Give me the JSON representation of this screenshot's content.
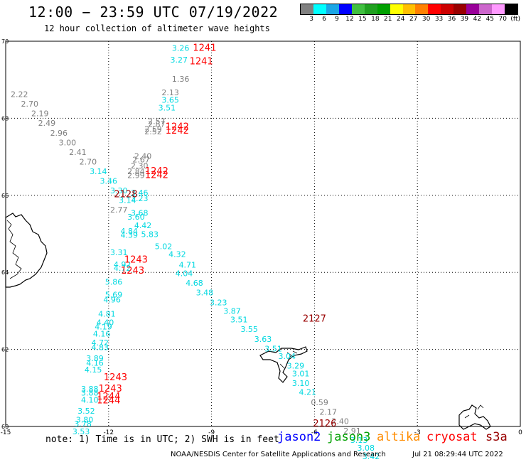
{
  "header": {
    "title": "12:00 − 23:59 UTC 07/19/2022",
    "subtitle": "12 hour collection of altimeter wave heights"
  },
  "legend": {
    "colors": [
      "#808080",
      "#00ffff",
      "#1aa6e6",
      "#0000ff",
      "#40c040",
      "#20a020",
      "#00a000",
      "#ffff00",
      "#ffc000",
      "#ff8000",
      "#ff0000",
      "#cc0000",
      "#990000",
      "#990099",
      "#cc66cc",
      "#ff99ff",
      "#000000"
    ],
    "labels": [
      "3",
      "6",
      "9",
      "12",
      "15",
      "18",
      "21",
      "24",
      "27",
      "30",
      "33",
      "36",
      "39",
      "42",
      "45",
      "70",
      "(ft)"
    ]
  },
  "axes": {
    "x_ticks": [
      "-15",
      "-12",
      "-9",
      "-6",
      "-3",
      "0"
    ],
    "y_ticks": [
      "70",
      "68",
      "66",
      "64",
      "62",
      "60"
    ]
  },
  "time_labels": [
    {
      "text": "1241",
      "lon": -9.2,
      "lat": 69.75,
      "color": "#ff0000"
    },
    {
      "text": "1241",
      "lon": -9.3,
      "lat": 69.4,
      "color": "#ff0000"
    },
    {
      "text": "1242",
      "lon": -10.0,
      "lat": 67.7,
      "color": "#ff0000"
    },
    {
      "text": "1242",
      "lon": -10.0,
      "lat": 67.6,
      "color": "#ff0000"
    },
    {
      "text": "1242",
      "lon": -10.6,
      "lat": 66.55,
      "color": "#ff0000"
    },
    {
      "text": "1242",
      "lon": -10.6,
      "lat": 66.45,
      "color": "#ff0000"
    },
    {
      "text": "2128",
      "lon": -11.5,
      "lat": 65.95,
      "color": "#990000"
    },
    {
      "text": "1243",
      "lon": -11.2,
      "lat": 64.25,
      "color": "#ff0000"
    },
    {
      "text": "1243",
      "lon": -11.3,
      "lat": 63.97,
      "color": "#ff0000"
    },
    {
      "text": "2127",
      "lon": -6.0,
      "lat": 62.72,
      "color": "#990000"
    },
    {
      "text": "1243",
      "lon": -11.8,
      "lat": 61.2,
      "color": "#ff0000"
    },
    {
      "text": "1243",
      "lon": -11.95,
      "lat": 60.9,
      "color": "#ff0000"
    },
    {
      "text": "1244",
      "lon": -12.0,
      "lat": 60.7,
      "color": "#ff0000"
    },
    {
      "text": "1244",
      "lon": -12.0,
      "lat": 60.6,
      "color": "#ff0000"
    },
    {
      "text": "2126",
      "lon": -5.7,
      "lat": 60.0,
      "color": "#990000"
    }
  ],
  "wave_heights": [
    {
      "text": "3.26",
      "lon": -9.9,
      "lat": 69.75,
      "color": "#00d8e0"
    },
    {
      "text": "3.27",
      "lon": -9.95,
      "lat": 69.45,
      "color": "#00d8e0"
    },
    {
      "text": "1.36",
      "lon": -9.9,
      "lat": 68.95,
      "color": "#808080"
    },
    {
      "text": "2.13",
      "lon": -10.2,
      "lat": 68.6,
      "color": "#808080"
    },
    {
      "text": "3.65",
      "lon": -10.2,
      "lat": 68.4,
      "color": "#00d8e0"
    },
    {
      "text": "3.51",
      "lon": -10.3,
      "lat": 68.2,
      "color": "#00d8e0"
    },
    {
      "text": "2.57",
      "lon": -10.6,
      "lat": 67.85,
      "color": "#808080"
    },
    {
      "text": "2.87",
      "lon": -10.6,
      "lat": 67.78,
      "color": "#808080"
    },
    {
      "text": "2.59",
      "lon": -10.7,
      "lat": 67.65,
      "color": "#808080"
    },
    {
      "text": "2.52",
      "lon": -10.7,
      "lat": 67.58,
      "color": "#808080"
    },
    {
      "text": "2.22",
      "lon": -14.6,
      "lat": 68.55,
      "color": "#808080"
    },
    {
      "text": "2.70",
      "lon": -14.3,
      "lat": 68.3,
      "color": "#808080"
    },
    {
      "text": "2.19",
      "lon": -14.0,
      "lat": 68.05,
      "color": "#808080"
    },
    {
      "text": "2.49",
      "lon": -13.8,
      "lat": 67.8,
      "color": "#808080"
    },
    {
      "text": "2.96",
      "lon": -13.45,
      "lat": 67.55,
      "color": "#808080"
    },
    {
      "text": "3.00",
      "lon": -13.2,
      "lat": 67.3,
      "color": "#808080"
    },
    {
      "text": "2.41",
      "lon": -12.9,
      "lat": 67.05,
      "color": "#808080"
    },
    {
      "text": "2.70",
      "lon": -12.6,
      "lat": 66.8,
      "color": "#808080"
    },
    {
      "text": "2.40",
      "lon": -11.0,
      "lat": 66.95,
      "color": "#808080"
    },
    {
      "text": "2.67",
      "lon": -11.05,
      "lat": 66.85,
      "color": "#808080"
    },
    {
      "text": "2.30",
      "lon": -11.1,
      "lat": 66.7,
      "color": "#808080"
    },
    {
      "text": "2.84",
      "lon": -11.2,
      "lat": 66.55,
      "color": "#808080"
    },
    {
      "text": "2.99",
      "lon": -11.2,
      "lat": 66.45,
      "color": "#808080"
    },
    {
      "text": "3.14",
      "lon": -12.3,
      "lat": 66.55,
      "color": "#00d8e0"
    },
    {
      "text": "3.46",
      "lon": -12.0,
      "lat": 66.3,
      "color": "#00d8e0"
    },
    {
      "text": "3.30",
      "lon": -11.7,
      "lat": 66.05,
      "color": "#00d8e0"
    },
    {
      "text": "3.14",
      "lon": -11.45,
      "lat": 65.8,
      "color": "#00d8e0"
    },
    {
      "text": "3.46",
      "lon": -11.1,
      "lat": 66.0,
      "color": "#00d8e0"
    },
    {
      "text": "3.23",
      "lon": -11.1,
      "lat": 65.85,
      "color": "#00d8e0"
    },
    {
      "text": "2.77",
      "lon": -11.7,
      "lat": 65.55,
      "color": "#808080"
    },
    {
      "text": "3.68",
      "lon": -11.1,
      "lat": 65.47,
      "color": "#00d8e0"
    },
    {
      "text": "3.60",
      "lon": -11.2,
      "lat": 65.37,
      "color": "#00d8e0"
    },
    {
      "text": "4.42",
      "lon": -11.0,
      "lat": 65.15,
      "color": "#00d8e0"
    },
    {
      "text": "4.84",
      "lon": -11.4,
      "lat": 65.0,
      "color": "#00d8e0"
    },
    {
      "text": "4.39",
      "lon": -11.4,
      "lat": 64.9,
      "color": "#00d8e0"
    },
    {
      "text": "5.83",
      "lon": -10.8,
      "lat": 64.92,
      "color": "#00d8e0"
    },
    {
      "text": "5.02",
      "lon": -10.4,
      "lat": 64.6,
      "color": "#00d8e0"
    },
    {
      "text": "3.31",
      "lon": -11.7,
      "lat": 64.45,
      "color": "#00d8e0"
    },
    {
      "text": "4.32",
      "lon": -10.0,
      "lat": 64.4,
      "color": "#00d8e0"
    },
    {
      "text": "4.92",
      "lon": -11.6,
      "lat": 64.13,
      "color": "#00d8e0"
    },
    {
      "text": "4.72",
      "lon": -11.6,
      "lat": 64.04,
      "color": "#00d8e0"
    },
    {
      "text": "4.71",
      "lon": -9.7,
      "lat": 64.12,
      "color": "#00d8e0"
    },
    {
      "text": "4.04",
      "lon": -9.8,
      "lat": 63.9,
      "color": "#00d8e0"
    },
    {
      "text": "5.86",
      "lon": -11.85,
      "lat": 63.68,
      "color": "#00d8e0"
    },
    {
      "text": "4.68",
      "lon": -9.5,
      "lat": 63.65,
      "color": "#00d8e0"
    },
    {
      "text": "3.48",
      "lon": -9.2,
      "lat": 63.4,
      "color": "#00d8e0"
    },
    {
      "text": "5.69",
      "lon": -11.85,
      "lat": 63.35,
      "color": "#00d8e0"
    },
    {
      "text": "4.96",
      "lon": -11.9,
      "lat": 63.22,
      "color": "#00d8e0"
    },
    {
      "text": "3.23",
      "lon": -8.8,
      "lat": 63.15,
      "color": "#00d8e0"
    },
    {
      "text": "3.87",
      "lon": -8.4,
      "lat": 62.92,
      "color": "#00d8e0"
    },
    {
      "text": "4.81",
      "lon": -12.05,
      "lat": 62.85,
      "color": "#00d8e0"
    },
    {
      "text": "3.51",
      "lon": -8.2,
      "lat": 62.7,
      "color": "#00d8e0"
    },
    {
      "text": "4.40",
      "lon": -12.1,
      "lat": 62.63,
      "color": "#00d8e0"
    },
    {
      "text": "4.19",
      "lon": -12.15,
      "lat": 62.52,
      "color": "#00d8e0"
    },
    {
      "text": "3.55",
      "lon": -7.9,
      "lat": 62.45,
      "color": "#00d8e0"
    },
    {
      "text": "4.16",
      "lon": -12.2,
      "lat": 62.33,
      "color": "#00d8e0"
    },
    {
      "text": "3.63",
      "lon": -7.5,
      "lat": 62.2,
      "color": "#00d8e0"
    },
    {
      "text": "4.72",
      "lon": -12.25,
      "lat": 62.1,
      "color": "#00d8e0"
    },
    {
      "text": "3.51",
      "lon": -7.2,
      "lat": 61.95,
      "color": "#00d8e0"
    },
    {
      "text": "4.83",
      "lon": -12.25,
      "lat": 61.98,
      "color": "#00d8e0"
    },
    {
      "text": "3.04",
      "lon": -6.8,
      "lat": 61.75,
      "color": "#00d8e0"
    },
    {
      "text": "3.89",
      "lon": -12.4,
      "lat": 61.7,
      "color": "#00d8e0"
    },
    {
      "text": "4.16",
      "lon": -12.4,
      "lat": 61.58,
      "color": "#00d8e0"
    },
    {
      "text": "3.29",
      "lon": -6.55,
      "lat": 61.5,
      "color": "#00d8e0"
    },
    {
      "text": "4.15",
      "lon": -12.45,
      "lat": 61.4,
      "color": "#00d8e0"
    },
    {
      "text": "3.01",
      "lon": -6.4,
      "lat": 61.3,
      "color": "#00d8e0"
    },
    {
      "text": "3.10",
      "lon": -6.4,
      "lat": 61.05,
      "color": "#00d8e0"
    },
    {
      "text": "4.21",
      "lon": -6.2,
      "lat": 60.82,
      "color": "#00d8e0"
    },
    {
      "text": "3.88",
      "lon": -12.55,
      "lat": 60.9,
      "color": "#00d8e0"
    },
    {
      "text": "3.88",
      "lon": -12.55,
      "lat": 60.8,
      "color": "#00d8e0"
    },
    {
      "text": "0.59",
      "lon": -5.85,
      "lat": 60.55,
      "color": "#808080"
    },
    {
      "text": "4.10",
      "lon": -12.55,
      "lat": 60.62,
      "color": "#00d8e0"
    },
    {
      "text": "2.17",
      "lon": -5.6,
      "lat": 60.3,
      "color": "#808080"
    },
    {
      "text": "2.40",
      "lon": -5.25,
      "lat": 60.06,
      "color": "#808080"
    },
    {
      "text": "3.52",
      "lon": -12.65,
      "lat": 60.33,
      "color": "#00d8e0"
    },
    {
      "text": "2.91",
      "lon": -4.9,
      "lat": 59.82,
      "color": "#808080"
    },
    {
      "text": "3.80",
      "lon": -12.7,
      "lat": 60.1,
      "color": "#00d8e0"
    },
    {
      "text": "3.78",
      "lon": -12.75,
      "lat": 60.0,
      "color": "#00d8e0"
    },
    {
      "text": "3.13",
      "lon": -4.7,
      "lat": 59.58,
      "color": "#00d8e0"
    },
    {
      "text": "3.53",
      "lon": -12.8,
      "lat": 59.8,
      "color": "#00d8e0"
    },
    {
      "text": "3.08",
      "lon": -4.5,
      "lat": 59.37,
      "color": "#00d8e0"
    },
    {
      "text": "3.42",
      "lon": -4.35,
      "lat": 59.15,
      "color": "#00d8e0"
    }
  ],
  "footer": {
    "note": "note: 1) Time is in UTC; 2) SWH is in feet",
    "missions": [
      {
        "name": "jason2",
        "color": "#0000ff"
      },
      {
        "name": "jason3",
        "color": "#00a000"
      },
      {
        "name": "altika",
        "color": "#ff8c00"
      },
      {
        "name": "cryosat",
        "color": "#ff0000"
      },
      {
        "name": "s3a",
        "color": "#990000"
      }
    ],
    "credit": "NOAA/NESDIS Center for Satellite Applications and Research",
    "timestamp": "Jul 21 08:29:44 UTC 2022"
  }
}
